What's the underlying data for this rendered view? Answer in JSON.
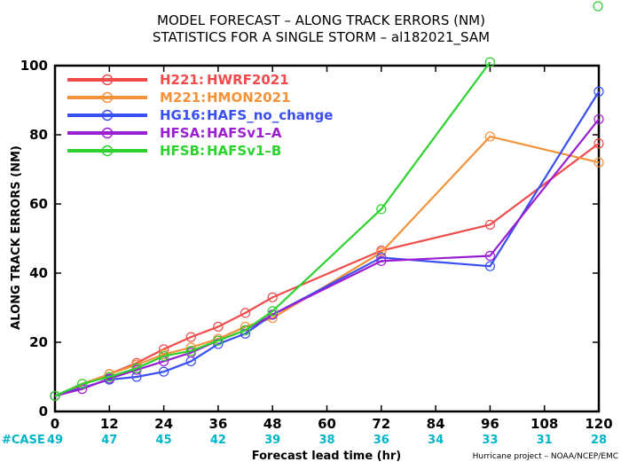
{
  "colors": {
    "case_color": "#00b5c8"
  },
  "chart_data": {
    "type": "line",
    "title_lines": [
      "MODEL FORECAST – ALONG TRACK ERRORS (NM)",
      "STATISTICS FOR A SINGLE STORM – al182021_SAM"
    ],
    "xlabel": "Forecast lead time (hr)",
    "ylabel": "ALONG TRACK ERRORS (NM)",
    "x_ticks": [
      0,
      12,
      24,
      36,
      48,
      60,
      72,
      84,
      96,
      108,
      120
    ],
    "y_ticks": [
      0,
      20,
      40,
      60,
      80,
      100
    ],
    "xlim": [
      0,
      120
    ],
    "ylim": [
      0,
      100
    ],
    "legend_position": "top-left",
    "case_label": "#CASE",
    "case_counts": [
      49,
      47,
      45,
      42,
      39,
      38,
      36,
      34,
      33,
      31,
      28
    ],
    "credit": "Hurricane project – NOAA/NCEP/EMC",
    "series": [
      {
        "code": "H221:",
        "name": "HWRF2021",
        "color": "#f04a4a",
        "x": [
          0,
          12,
          18,
          24,
          30,
          36,
          42,
          48,
          72,
          96,
          120
        ],
        "y": [
          4.5,
          10.8,
          14,
          18,
          21.5,
          24.5,
          28.5,
          33,
          46.5,
          54,
          77.5
        ]
      },
      {
        "code": "M221:",
        "name": "HMON2021",
        "color": "#f4923a",
        "x": [
          0,
          6,
          12,
          18,
          24,
          30,
          36,
          42,
          48,
          72,
          96,
          120
        ],
        "y": [
          4.5,
          8,
          10.8,
          13.5,
          16.5,
          18.5,
          21,
          24.5,
          27,
          46,
          79.5,
          72
        ]
      },
      {
        "code": "HG16:",
        "name": "HAFS_no_change",
        "color": "#3a4ff2",
        "x": [
          0,
          12,
          18,
          24,
          30,
          36,
          42,
          48,
          72,
          96,
          120
        ],
        "y": [
          4.5,
          9.2,
          10,
          11.5,
          14.5,
          19.5,
          22.5,
          28,
          44.5,
          42,
          92.5
        ]
      },
      {
        "code": "HFSA:",
        "name": "HAFSv1–A",
        "color": "#9a1fd2",
        "x": [
          0,
          6,
          12,
          18,
          24,
          30,
          36,
          42,
          48,
          72,
          96,
          120
        ],
        "y": [
          4.5,
          6.5,
          9.5,
          12,
          14.5,
          17,
          20.5,
          23.5,
          28,
          43.5,
          45,
          84.5
        ]
      },
      {
        "code": "HFSB:",
        "name": "HAFSv1–B",
        "color": "#2ed22e",
        "x": [
          0,
          6,
          12,
          18,
          24,
          30,
          36,
          42,
          48,
          72,
          96
        ],
        "y": [
          4.5,
          8,
          10,
          12.5,
          16,
          17.5,
          20.5,
          23.5,
          29,
          58.5,
          101
        ]
      }
    ]
  }
}
